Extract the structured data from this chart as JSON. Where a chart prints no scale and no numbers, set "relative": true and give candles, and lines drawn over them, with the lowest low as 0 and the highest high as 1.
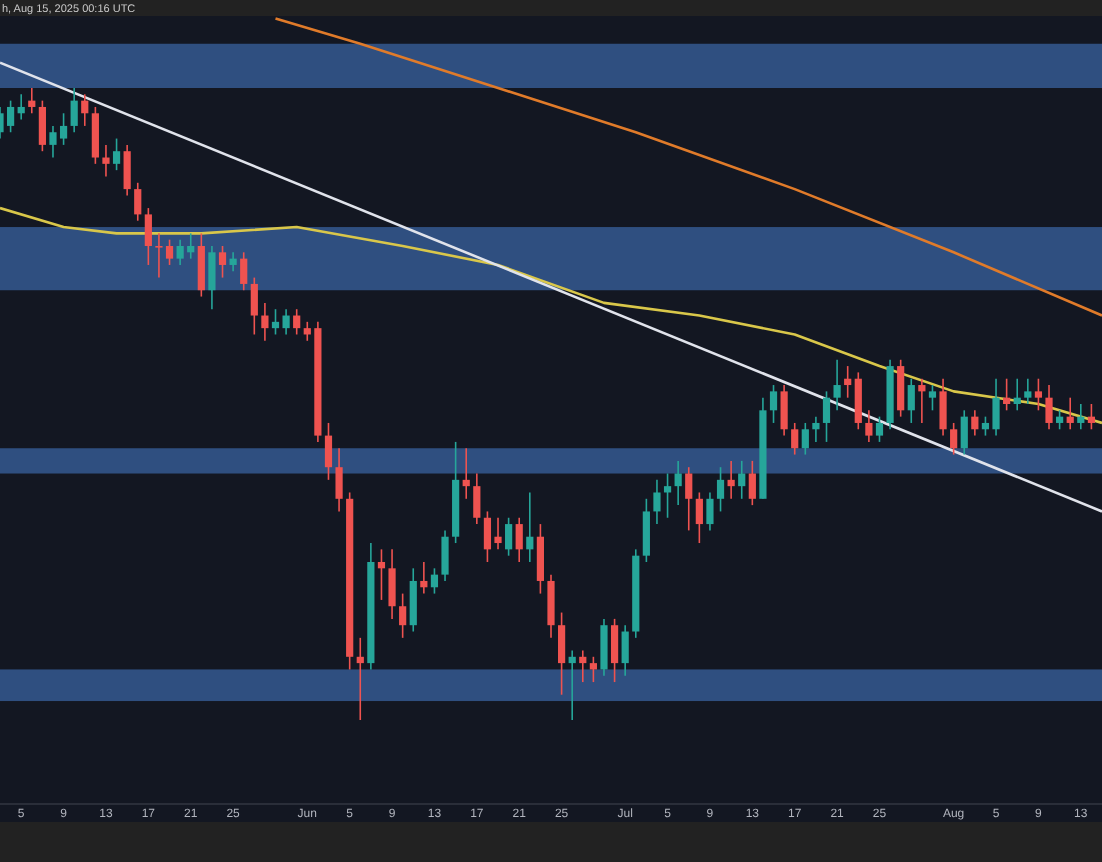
{
  "chart_data": {
    "type": "candlestick",
    "relative": true,
    "grid": false,
    "annotations": [
      "h, Aug 15, 2025 00:16 UTC"
    ],
    "xlim": [
      "2025-05-03",
      "2025-08-15"
    ],
    "xticks": [
      {
        "value": "2025-05-05",
        "label": "5"
      },
      {
        "value": "2025-05-09",
        "label": "9"
      },
      {
        "value": "2025-05-13",
        "label": "13"
      },
      {
        "value": "2025-05-17",
        "label": "17"
      },
      {
        "value": "2025-05-21",
        "label": "21"
      },
      {
        "value": "2025-05-25",
        "label": "25"
      },
      {
        "value": "2025-06-01",
        "label": "Jun"
      },
      {
        "value": "2025-06-05",
        "label": "5"
      },
      {
        "value": "2025-06-09",
        "label": "9"
      },
      {
        "value": "2025-06-13",
        "label": "13"
      },
      {
        "value": "2025-06-17",
        "label": "17"
      },
      {
        "value": "2025-06-21",
        "label": "21"
      },
      {
        "value": "2025-06-25",
        "label": "25"
      },
      {
        "value": "2025-07-01",
        "label": "Jul"
      },
      {
        "value": "2025-07-05",
        "label": "5"
      },
      {
        "value": "2025-07-09",
        "label": "9"
      },
      {
        "value": "2025-07-13",
        "label": "13"
      },
      {
        "value": "2025-07-17",
        "label": "17"
      },
      {
        "value": "2025-07-21",
        "label": "21"
      },
      {
        "value": "2025-07-25",
        "label": "25"
      },
      {
        "value": "2025-08-01",
        "label": "Aug"
      },
      {
        "value": "2025-08-05",
        "label": "5"
      },
      {
        "value": "2025-08-09",
        "label": "9"
      },
      {
        "value": "2025-08-13",
        "label": "13"
      }
    ],
    "bands": [
      {
        "axis": "y",
        "from": 1.0,
        "to": 1.07,
        "color": "#2f4f80"
      },
      {
        "axis": "y",
        "from": 0.68,
        "to": 0.78,
        "color": "#2f4f80"
      },
      {
        "axis": "y",
        "from": 0.39,
        "to": 0.43,
        "color": "#2f4f80"
      },
      {
        "axis": "y",
        "from": 0.03,
        "to": 0.08,
        "color": "#2f4f80"
      }
    ],
    "series": [
      {
        "type": "line",
        "color": "#e07b2a",
        "x": [
          "2025-05-29",
          "2025-06-06",
          "2025-06-19",
          "2025-07-02",
          "2025-07-17",
          "2025-08-01",
          "2025-08-15"
        ],
        "values": [
          1.11,
          1.07,
          1.0,
          0.93,
          0.84,
          0.74,
          0.64
        ]
      },
      {
        "type": "line",
        "color": "#d9c74a",
        "x": [
          "2025-05-03",
          "2025-05-09",
          "2025-05-14",
          "2025-05-22",
          "2025-05-31",
          "2025-06-10",
          "2025-06-19",
          "2025-06-29",
          "2025-07-08",
          "2025-07-17",
          "2025-07-25",
          "2025-08-01",
          "2025-08-09",
          "2025-08-15"
        ],
        "values": [
          0.81,
          0.78,
          0.77,
          0.77,
          0.78,
          0.75,
          0.72,
          0.66,
          0.64,
          0.61,
          0.56,
          0.52,
          0.5,
          0.47
        ]
      },
      {
        "type": "line",
        "color": "#e0e3eb",
        "x": [
          "2025-05-03",
          "2025-08-15"
        ],
        "values": [
          1.04,
          0.33
        ]
      },
      {
        "x": [
          "2025-05-03",
          "2025-05-04",
          "2025-05-05",
          "2025-05-06",
          "2025-05-07",
          "2025-05-08",
          "2025-05-09",
          "2025-05-10",
          "2025-05-11",
          "2025-05-12",
          "2025-05-13",
          "2025-05-14",
          "2025-05-15",
          "2025-05-16",
          "2025-05-17",
          "2025-05-18",
          "2025-05-19",
          "2025-05-20",
          "2025-05-21",
          "2025-05-22",
          "2025-05-23",
          "2025-05-24",
          "2025-05-25",
          "2025-05-26",
          "2025-05-27",
          "2025-05-28",
          "2025-05-29",
          "2025-05-30",
          "2025-05-31",
          "2025-06-01",
          "2025-06-02",
          "2025-06-03",
          "2025-06-04",
          "2025-06-05",
          "2025-06-06",
          "2025-06-07",
          "2025-06-08",
          "2025-06-09",
          "2025-06-10",
          "2025-06-11",
          "2025-06-12",
          "2025-06-13",
          "2025-06-14",
          "2025-06-15",
          "2025-06-16",
          "2025-06-17",
          "2025-06-18",
          "2025-06-19",
          "2025-06-20",
          "2025-06-21",
          "2025-06-22",
          "2025-06-23",
          "2025-06-24",
          "2025-06-25",
          "2025-06-26",
          "2025-06-27",
          "2025-06-28",
          "2025-06-29",
          "2025-06-30",
          "2025-07-01",
          "2025-07-02",
          "2025-07-03",
          "2025-07-04",
          "2025-07-05",
          "2025-07-06",
          "2025-07-07",
          "2025-07-08",
          "2025-07-09",
          "2025-07-10",
          "2025-07-11",
          "2025-07-12",
          "2025-07-13",
          "2025-07-14",
          "2025-07-15",
          "2025-07-16",
          "2025-07-17",
          "2025-07-18",
          "2025-07-19",
          "2025-07-20",
          "2025-07-21",
          "2025-07-22",
          "2025-07-23",
          "2025-07-24",
          "2025-07-25",
          "2025-07-26",
          "2025-07-27",
          "2025-07-28",
          "2025-07-29",
          "2025-07-30",
          "2025-07-31",
          "2025-08-01",
          "2025-08-02",
          "2025-08-03",
          "2025-08-04",
          "2025-08-05",
          "2025-08-06",
          "2025-08-07",
          "2025-08-08",
          "2025-08-09",
          "2025-08-10",
          "2025-08-11",
          "2025-08-12",
          "2025-08-13",
          "2025-08-14"
        ],
        "ohlc": [
          [
            0.93,
            0.97,
            0.92,
            0.96
          ],
          [
            0.94,
            0.98,
            0.93,
            0.97
          ],
          [
            0.96,
            0.99,
            0.95,
            0.97
          ],
          [
            0.98,
            1.0,
            0.96,
            0.97
          ],
          [
            0.97,
            0.98,
            0.9,
            0.91
          ],
          [
            0.91,
            0.94,
            0.89,
            0.93
          ],
          [
            0.92,
            0.96,
            0.91,
            0.94
          ],
          [
            0.94,
            1.0,
            0.93,
            0.98
          ],
          [
            0.98,
            0.99,
            0.94,
            0.96
          ],
          [
            0.96,
            0.97,
            0.88,
            0.89
          ],
          [
            0.89,
            0.91,
            0.86,
            0.88
          ],
          [
            0.88,
            0.92,
            0.87,
            0.9
          ],
          [
            0.9,
            0.91,
            0.83,
            0.84
          ],
          [
            0.84,
            0.85,
            0.79,
            0.8
          ],
          [
            0.8,
            0.81,
            0.72,
            0.75
          ],
          [
            0.75,
            0.77,
            0.7,
            0.75
          ],
          [
            0.75,
            0.76,
            0.72,
            0.73
          ],
          [
            0.73,
            0.76,
            0.72,
            0.75
          ],
          [
            0.74,
            0.77,
            0.73,
            0.75
          ],
          [
            0.75,
            0.77,
            0.67,
            0.68
          ],
          [
            0.68,
            0.75,
            0.65,
            0.74
          ],
          [
            0.74,
            0.75,
            0.7,
            0.72
          ],
          [
            0.72,
            0.74,
            0.71,
            0.73
          ],
          [
            0.73,
            0.74,
            0.68,
            0.69
          ],
          [
            0.69,
            0.7,
            0.61,
            0.64
          ],
          [
            0.64,
            0.66,
            0.6,
            0.62
          ],
          [
            0.62,
            0.65,
            0.61,
            0.63
          ],
          [
            0.62,
            0.65,
            0.61,
            0.64
          ],
          [
            0.64,
            0.65,
            0.61,
            0.62
          ],
          [
            0.62,
            0.63,
            0.6,
            0.61
          ],
          [
            0.62,
            0.63,
            0.44,
            0.45
          ],
          [
            0.45,
            0.47,
            0.38,
            0.4
          ],
          [
            0.4,
            0.43,
            0.33,
            0.35
          ],
          [
            0.35,
            0.36,
            0.08,
            0.1
          ],
          [
            0.1,
            0.13,
            0,
            0.09
          ],
          [
            0.09,
            0.28,
            0.08,
            0.25
          ],
          [
            0.25,
            0.27,
            0.19,
            0.24
          ],
          [
            0.24,
            0.27,
            0.16,
            0.18
          ],
          [
            0.18,
            0.2,
            0.13,
            0.15
          ],
          [
            0.15,
            0.24,
            0.14,
            0.22
          ],
          [
            0.22,
            0.25,
            0.2,
            0.21
          ],
          [
            0.21,
            0.24,
            0.2,
            0.23
          ],
          [
            0.23,
            0.3,
            0.22,
            0.29
          ],
          [
            0.29,
            0.44,
            0.28,
            0.38
          ],
          [
            0.38,
            0.43,
            0.35,
            0.37
          ],
          [
            0.37,
            0.39,
            0.31,
            0.32
          ],
          [
            0.32,
            0.33,
            0.25,
            0.27
          ],
          [
            0.29,
            0.32,
            0.27,
            0.28
          ],
          [
            0.27,
            0.32,
            0.26,
            0.31
          ],
          [
            0.31,
            0.32,
            0.25,
            0.27
          ],
          [
            0.27,
            0.36,
            0.25,
            0.29
          ],
          [
            0.29,
            0.31,
            0.2,
            0.22
          ],
          [
            0.22,
            0.23,
            0.13,
            0.15
          ],
          [
            0.15,
            0.17,
            0.04,
            0.09
          ],
          [
            0.09,
            0.11,
            0,
            0.1
          ],
          [
            0.1,
            0.11,
            0.06,
            0.09
          ],
          [
            0.09,
            0.1,
            0.06,
            0.08
          ],
          [
            0.08,
            0.16,
            0.07,
            0.15
          ],
          [
            0.15,
            0.16,
            0.06,
            0.09
          ],
          [
            0.09,
            0.15,
            0.07,
            0.14
          ],
          [
            0.14,
            0.27,
            0.13,
            0.26
          ],
          [
            0.26,
            0.35,
            0.25,
            0.33
          ],
          [
            0.33,
            0.38,
            0.31,
            0.36
          ],
          [
            0.36,
            0.39,
            0.32,
            0.37
          ],
          [
            0.37,
            0.41,
            0.34,
            0.39
          ],
          [
            0.39,
            0.4,
            0.3,
            0.35
          ],
          [
            0.35,
            0.36,
            0.28,
            0.31
          ],
          [
            0.31,
            0.36,
            0.3,
            0.35
          ],
          [
            0.35,
            0.4,
            0.33,
            0.38
          ],
          [
            0.38,
            0.41,
            0.35,
            0.37
          ],
          [
            0.37,
            0.41,
            0.35,
            0.39
          ],
          [
            0.39,
            0.41,
            0.34,
            0.35
          ],
          [
            0.35,
            0.51,
            0.35,
            0.49
          ],
          [
            0.49,
            0.53,
            0.47,
            0.52
          ],
          [
            0.52,
            0.53,
            0.45,
            0.46
          ],
          [
            0.46,
            0.47,
            0.42,
            0.43
          ],
          [
            0.43,
            0.47,
            0.42,
            0.46
          ],
          [
            0.46,
            0.48,
            0.44,
            0.47
          ],
          [
            0.47,
            0.52,
            0.44,
            0.51
          ],
          [
            0.51,
            0.57,
            0.49,
            0.53
          ],
          [
            0.54,
            0.56,
            0.51,
            0.53
          ],
          [
            0.54,
            0.55,
            0.46,
            0.47
          ],
          [
            0.47,
            0.49,
            0.44,
            0.45
          ],
          [
            0.45,
            0.48,
            0.44,
            0.47
          ],
          [
            0.47,
            0.57,
            0.46,
            0.56
          ],
          [
            0.56,
            0.57,
            0.48,
            0.49
          ],
          [
            0.49,
            0.54,
            0.47,
            0.53
          ],
          [
            0.53,
            0.54,
            0.47,
            0.52
          ],
          [
            0.51,
            0.53,
            0.49,
            0.52
          ],
          [
            0.52,
            0.54,
            0.45,
            0.46
          ],
          [
            0.46,
            0.47,
            0.42,
            0.43
          ],
          [
            0.43,
            0.49,
            0.42,
            0.48
          ],
          [
            0.48,
            0.49,
            0.45,
            0.46
          ],
          [
            0.46,
            0.48,
            0.45,
            0.47
          ],
          [
            0.46,
            0.54,
            0.45,
            0.51
          ],
          [
            0.51,
            0.54,
            0.49,
            0.5
          ],
          [
            0.5,
            0.54,
            0.49,
            0.51
          ],
          [
            0.51,
            0.54,
            0.5,
            0.52
          ],
          [
            0.52,
            0.54,
            0.49,
            0.51
          ],
          [
            0.51,
            0.53,
            0.46,
            0.47
          ],
          [
            0.47,
            0.49,
            0.46,
            0.48
          ],
          [
            0.48,
            0.51,
            0.46,
            0.47
          ],
          [
            0.47,
            0.5,
            0.46,
            0.48
          ],
          [
            0.48,
            0.5,
            0.46,
            0.47
          ]
        ],
        "colors": [
          "#26a69a",
          "#26a69a",
          "#26a69a",
          "#ef5350",
          "#ef5350",
          "#26a69a",
          "#26a69a",
          "#26a69a",
          "#ef5350",
          "#ef5350",
          "#ef5350",
          "#26a69a",
          "#ef5350",
          "#ef5350",
          "#ef5350",
          "#ef5350",
          "#ef5350",
          "#26a69a",
          "#26a69a",
          "#ef5350",
          "#26a69a",
          "#ef5350",
          "#26a69a",
          "#ef5350",
          "#ef5350",
          "#ef5350",
          "#26a69a",
          "#26a69a",
          "#ef5350",
          "#ef5350",
          "#ef5350",
          "#ef5350",
          "#ef5350",
          "#ef5350",
          "#ef5350",
          "#26a69a",
          "#ef5350",
          "#ef5350",
          "#ef5350",
          "#26a69a",
          "#ef5350",
          "#26a69a",
          "#26a69a",
          "#26a69a",
          "#ef5350",
          "#ef5350",
          "#ef5350",
          "#ef5350",
          "#26a69a",
          "#ef5350",
          "#26a69a",
          "#ef5350",
          "#ef5350",
          "#ef5350",
          "#26a69a",
          "#ef5350",
          "#ef5350",
          "#26a69a",
          "#ef5350",
          "#26a69a",
          "#26a69a",
          "#26a69a",
          "#26a69a",
          "#26a69a",
          "#26a69a",
          "#ef5350",
          "#ef5350",
          "#26a69a",
          "#26a69a",
          "#ef5350",
          "#26a69a",
          "#ef5350",
          "#26a69a",
          "#26a69a",
          "#ef5350",
          "#ef5350",
          "#26a69a",
          "#26a69a",
          "#26a69a",
          "#26a69a",
          "#ef5350",
          "#ef5350",
          "#ef5350",
          "#26a69a",
          "#26a69a",
          "#ef5350",
          "#26a69a",
          "#ef5350",
          "#26a69a",
          "#ef5350",
          "#ef5350",
          "#26a69a",
          "#ef5350",
          "#26a69a",
          "#26a69a",
          "#ef5350",
          "#26a69a",
          "#26a69a",
          "#ef5350",
          "#ef5350",
          "#26a69a",
          "#ef5350",
          "#26a69a",
          "#ef5350"
        ]
      }
    ]
  }
}
